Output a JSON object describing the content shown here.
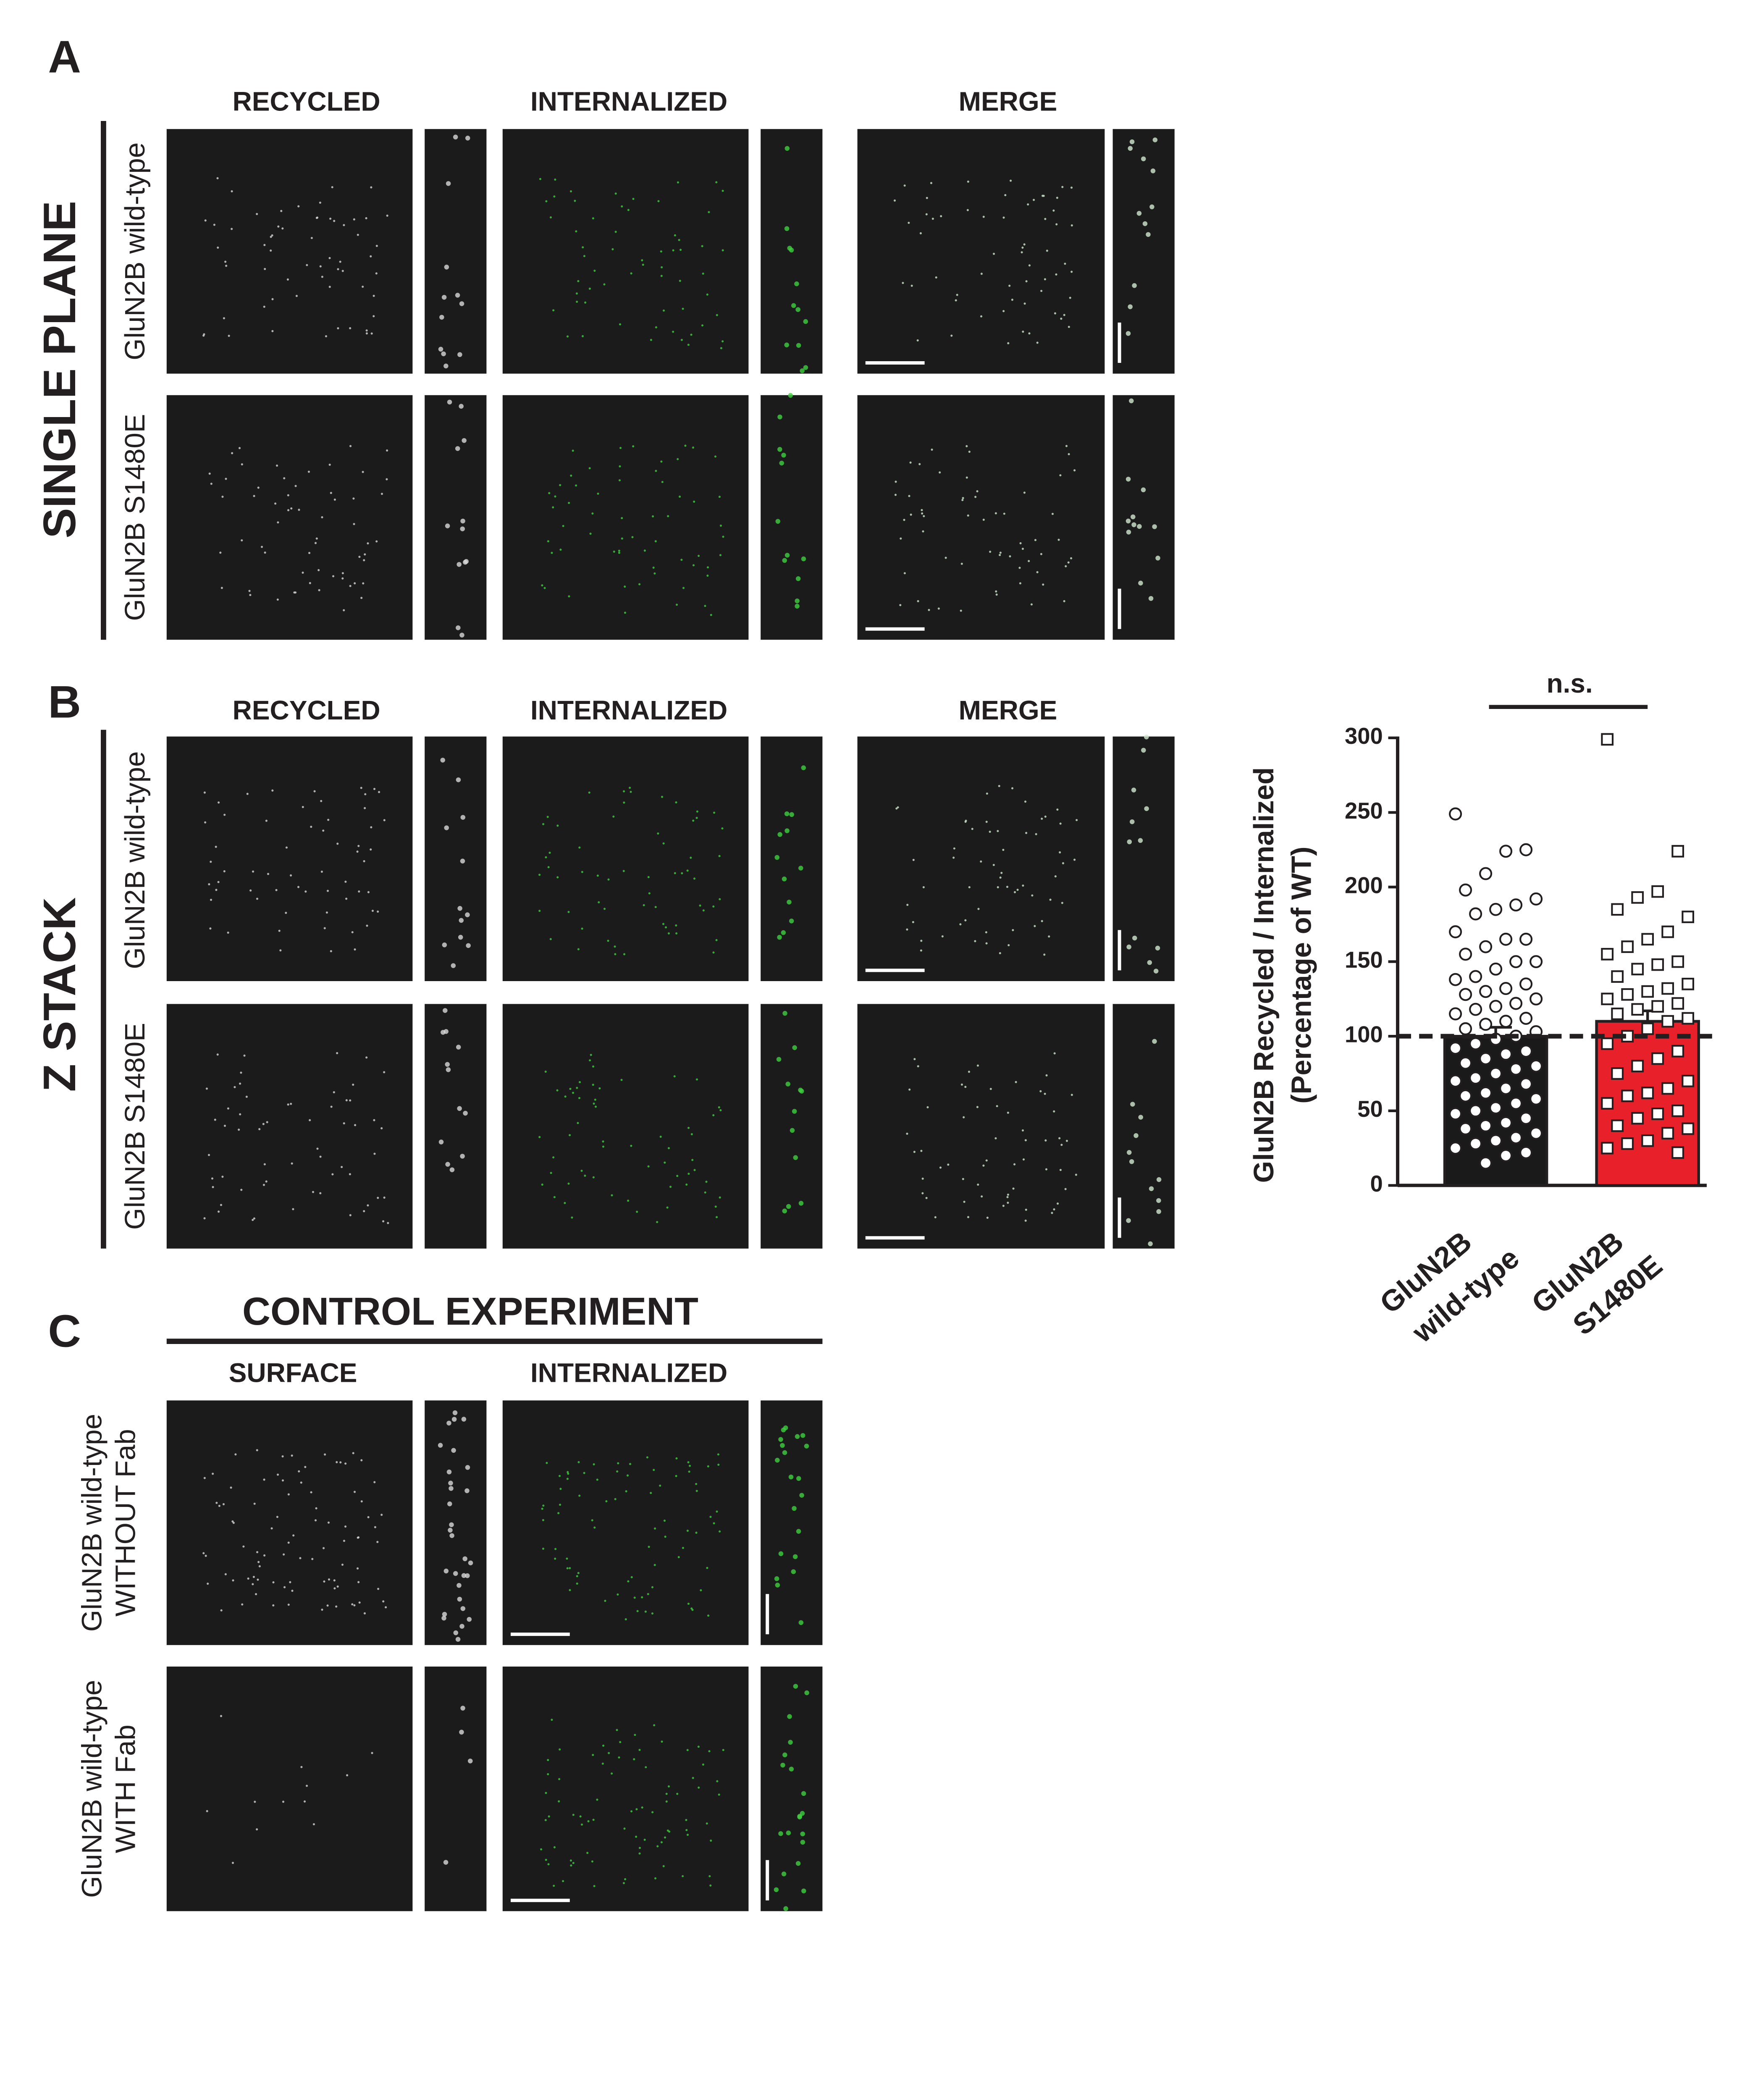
{
  "figure": {
    "panel_labels": [
      "A",
      "B",
      "C"
    ],
    "panel_a": {
      "side_label": "SINGLE PLANE",
      "columns": [
        "RECYCLED",
        "INTERNALIZED",
        "MERGE"
      ],
      "rows": [
        "GluN2B wild-type",
        "GluN2B S1480E"
      ]
    },
    "panel_b": {
      "side_label": "Z STACK",
      "columns": [
        "RECYCLED",
        "INTERNALIZED",
        "MERGE"
      ],
      "rows": [
        "GluN2B wild-type",
        "GluN2B S1480E"
      ]
    },
    "panel_c": {
      "title": "CONTROL EXPERIMENT",
      "columns": [
        "SURFACE",
        "INTERNALIZED"
      ],
      "rows": [
        [
          "GluN2B wild-type",
          "WITHOUT Fab"
        ],
        [
          "GluN2B wild-type",
          "WITH Fab"
        ]
      ]
    }
  },
  "chart_data": {
    "type": "bar",
    "ylabel": [
      "GluN2B Recycled / Internalized",
      "(Percentage of WT)"
    ],
    "categories": [
      [
        "GluN2B",
        "wild-type"
      ],
      [
        "GluN2B",
        "S1480E"
      ]
    ],
    "values": [
      100,
      110
    ],
    "errors": [
      6,
      7
    ],
    "colors": [
      "#1a1a1a",
      "#e8202a"
    ],
    "point_markers": [
      "circle",
      "square"
    ],
    "points": [
      [
        249,
        225,
        224,
        209,
        198,
        192,
        188,
        185,
        182,
        170,
        165,
        165,
        160,
        155,
        150,
        150,
        145,
        140,
        138,
        135,
        132,
        130,
        128,
        125,
        122,
        120,
        118,
        115,
        112,
        110,
        108,
        105,
        103,
        100,
        98,
        95,
        92,
        90,
        88,
        85,
        82,
        80,
        78,
        75,
        72,
        70,
        68,
        65,
        62,
        60,
        58,
        55,
        52,
        50,
        48,
        45,
        42,
        40,
        38,
        35,
        32,
        30,
        28,
        25,
        22,
        20,
        15
      ],
      [
        299,
        224,
        197,
        193,
        185,
        180,
        170,
        165,
        160,
        155,
        150,
        148,
        145,
        140,
        135,
        132,
        130,
        128,
        125,
        122,
        120,
        118,
        115,
        112,
        110,
        105,
        100,
        95,
        90,
        85,
        80,
        75,
        70,
        65,
        62,
        60,
        55,
        50,
        48,
        45,
        40,
        38,
        35,
        30,
        28,
        25,
        22
      ]
    ],
    "reference_line": 100,
    "annotation": "n.s.",
    "ylim": [
      0,
      300
    ],
    "yticks": [
      0,
      50,
      100,
      150,
      200,
      250,
      300
    ]
  }
}
